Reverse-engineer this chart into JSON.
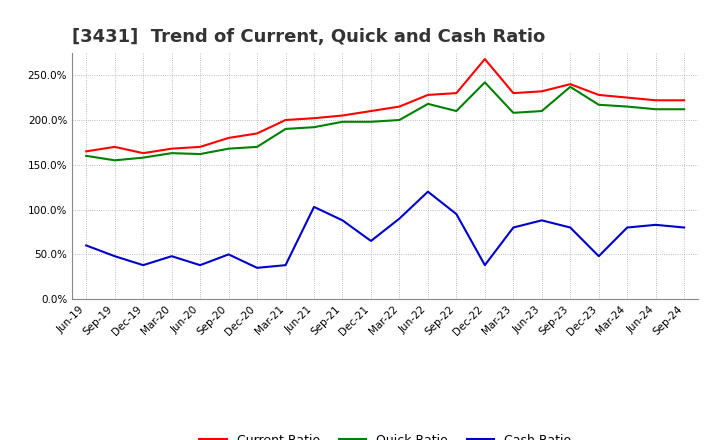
{
  "title": "[3431]  Trend of Current, Quick and Cash Ratio",
  "x_labels": [
    "Jun-19",
    "Sep-19",
    "Dec-19",
    "Mar-20",
    "Jun-20",
    "Sep-20",
    "Dec-20",
    "Mar-21",
    "Jun-21",
    "Sep-21",
    "Dec-21",
    "Mar-22",
    "Jun-22",
    "Sep-22",
    "Dec-22",
    "Mar-23",
    "Jun-23",
    "Sep-23",
    "Dec-23",
    "Mar-24",
    "Jun-24",
    "Sep-24"
  ],
  "current_ratio": [
    165,
    170,
    163,
    168,
    170,
    180,
    185,
    200,
    202,
    205,
    210,
    215,
    228,
    230,
    268,
    230,
    232,
    240,
    228,
    225,
    222,
    222
  ],
  "quick_ratio": [
    160,
    155,
    158,
    163,
    162,
    168,
    170,
    190,
    192,
    198,
    198,
    200,
    218,
    210,
    242,
    208,
    210,
    237,
    217,
    215,
    212,
    212
  ],
  "cash_ratio": [
    60,
    48,
    38,
    48,
    38,
    50,
    35,
    38,
    103,
    88,
    65,
    90,
    120,
    95,
    38,
    80,
    88,
    80,
    48,
    80,
    83,
    80
  ],
  "current_color": "#ff0000",
  "quick_color": "#008000",
  "cash_color": "#0000cc",
  "background_color": "#ffffff",
  "ylim": [
    0,
    275
  ],
  "yticks": [
    0,
    50,
    100,
    150,
    200,
    250
  ],
  "title_fontsize": 13,
  "legend_fontsize": 9,
  "tick_fontsize": 7.5,
  "line_width": 1.5
}
